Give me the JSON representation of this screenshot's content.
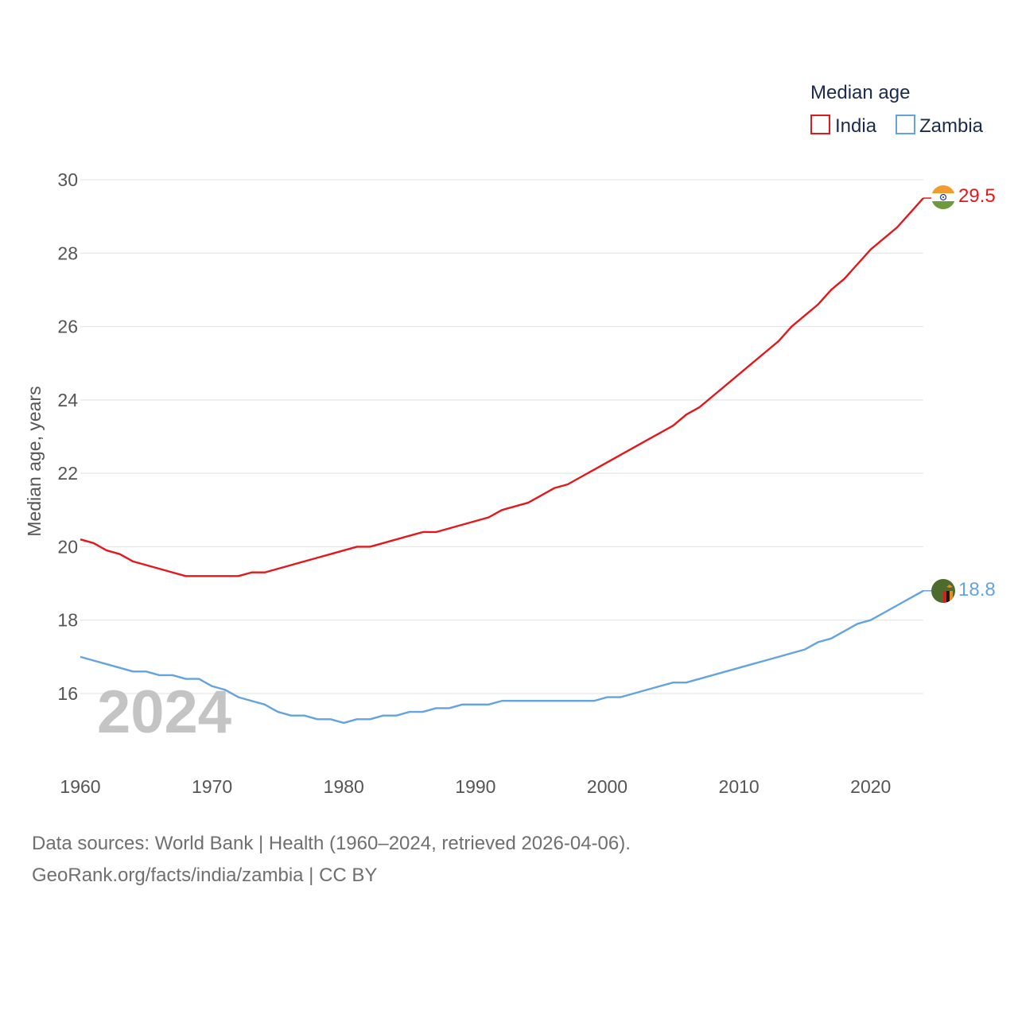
{
  "chart_data": {
    "type": "line",
    "legend_title": "Median age",
    "ylabel": "Median age, years",
    "xlabel": "",
    "xlim": [
      1960,
      2024
    ],
    "ylim": [
      14.4,
      30.4
    ],
    "y_ticks": [
      16,
      18,
      20,
      22,
      24,
      26,
      28,
      30
    ],
    "x_ticks": [
      1960,
      1970,
      1980,
      1990,
      2000,
      2010,
      2020
    ],
    "year_label": "2024",
    "grid": true,
    "legend_position": "top-right",
    "x": [
      1960,
      1961,
      1962,
      1963,
      1964,
      1965,
      1966,
      1967,
      1968,
      1969,
      1970,
      1971,
      1972,
      1973,
      1974,
      1975,
      1976,
      1977,
      1978,
      1979,
      1980,
      1981,
      1982,
      1983,
      1984,
      1985,
      1986,
      1987,
      1988,
      1989,
      1990,
      1991,
      1992,
      1993,
      1994,
      1995,
      1996,
      1997,
      1998,
      1999,
      2000,
      2001,
      2002,
      2003,
      2004,
      2005,
      2006,
      2007,
      2008,
      2009,
      2010,
      2011,
      2012,
      2013,
      2014,
      2015,
      2016,
      2017,
      2018,
      2019,
      2020,
      2021,
      2022,
      2023,
      2024
    ],
    "series": [
      {
        "name": "India",
        "color": "#e3181c",
        "end_label": "29.5",
        "values": [
          20.2,
          20.1,
          19.9,
          19.8,
          19.6,
          19.5,
          19.4,
          19.3,
          19.2,
          19.2,
          19.2,
          19.2,
          19.2,
          19.3,
          19.3,
          19.4,
          19.5,
          19.6,
          19.7,
          19.8,
          19.9,
          20.0,
          20.0,
          20.1,
          20.2,
          20.3,
          20.4,
          20.4,
          20.5,
          20.6,
          20.7,
          20.8,
          21.0,
          21.1,
          21.2,
          21.4,
          21.6,
          21.7,
          21.9,
          22.1,
          22.3,
          22.5,
          22.7,
          22.9,
          23.1,
          23.3,
          23.6,
          23.8,
          24.1,
          24.4,
          24.7,
          25.0,
          25.3,
          25.6,
          26.0,
          26.3,
          26.6,
          27.0,
          27.3,
          27.7,
          28.1,
          28.4,
          28.7,
          29.1,
          29.5
        ]
      },
      {
        "name": "Zambia",
        "color": "#63a4e0",
        "end_label": "18.8",
        "values": [
          17.0,
          16.9,
          16.8,
          16.7,
          16.6,
          16.6,
          16.5,
          16.5,
          16.4,
          16.4,
          16.2,
          16.1,
          15.9,
          15.8,
          15.7,
          15.5,
          15.4,
          15.4,
          15.3,
          15.3,
          15.2,
          15.3,
          15.3,
          15.4,
          15.4,
          15.5,
          15.5,
          15.6,
          15.6,
          15.7,
          15.7,
          15.7,
          15.8,
          15.8,
          15.8,
          15.8,
          15.8,
          15.8,
          15.8,
          15.8,
          15.9,
          15.9,
          16.0,
          16.1,
          16.2,
          16.3,
          16.3,
          16.4,
          16.5,
          16.6,
          16.7,
          16.8,
          16.9,
          17.0,
          17.1,
          17.2,
          17.4,
          17.5,
          17.7,
          17.9,
          18.0,
          18.2,
          18.4,
          18.6,
          18.8
        ]
      }
    ]
  },
  "footer": {
    "line1": "Data sources: World Bank | Health (1960–2024, retrieved 2026-04-06).",
    "line2": "GeoRank.org/facts/india/zambia | CC BY"
  },
  "flags": {
    "India": {
      "icon": "india-flag-icon",
      "colors": [
        "#f29c30",
        "#ffffff",
        "#6f9a3c",
        "#1d3f99"
      ]
    },
    "Zambia": {
      "icon": "zambia-flag-icon",
      "colors": [
        "#4d6b2c",
        "#d62020",
        "#1a1a1a",
        "#f08a1e"
      ]
    }
  }
}
